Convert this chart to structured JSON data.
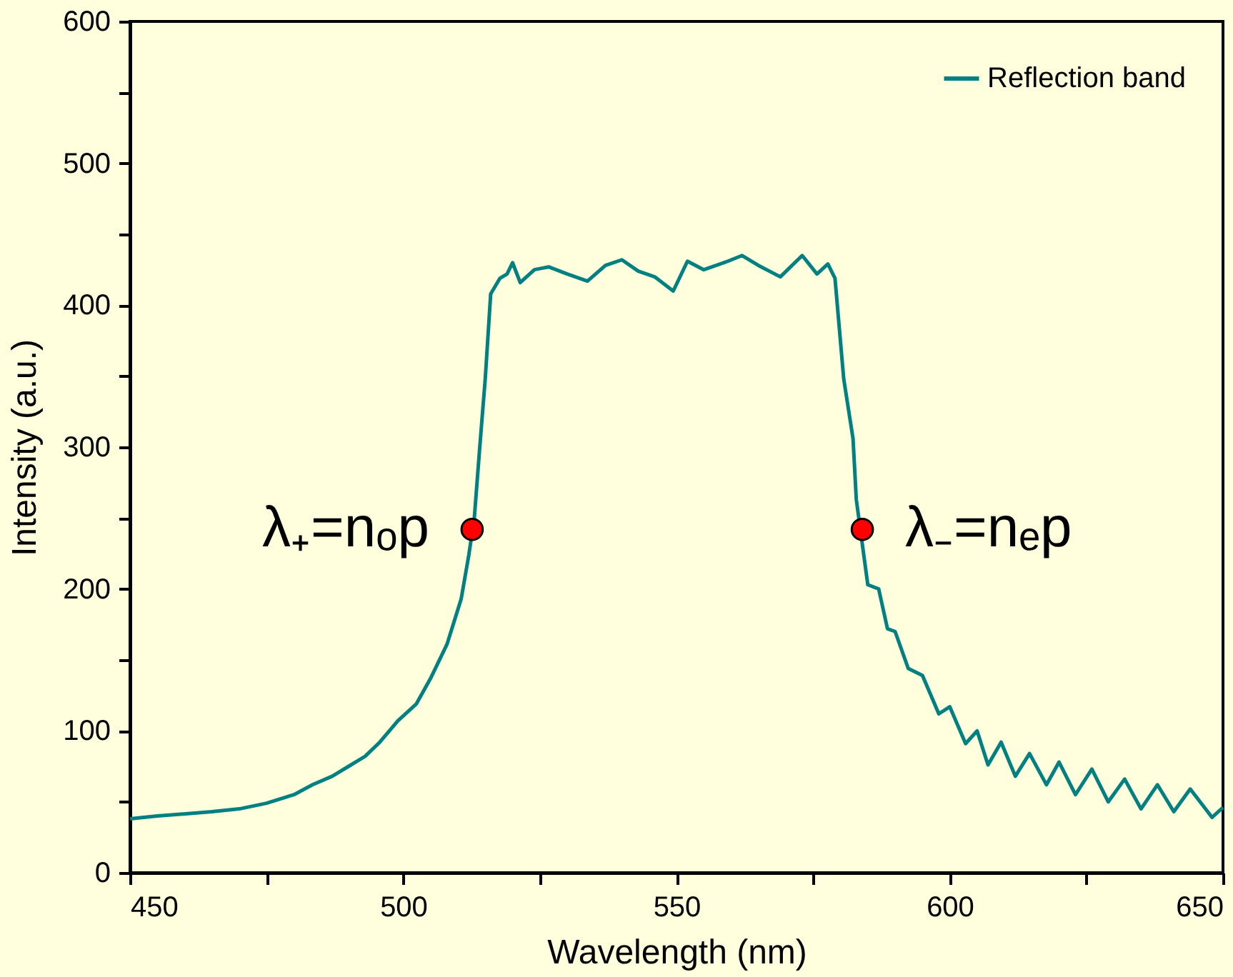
{
  "chart_data": {
    "type": "line",
    "xlabel": "Wavelength (nm)",
    "ylabel": "Intensity (a.u.)",
    "xlim": [
      450,
      650
    ],
    "ylim": [
      0,
      600
    ],
    "xticks": [
      450,
      {
        "value": 475,
        "label": null
      },
      500,
      {
        "value": 525,
        "label": null
      },
      550,
      {
        "value": 575,
        "label": null
      },
      600,
      {
        "value": 625,
        "label": null
      },
      650
    ],
    "yticks": [
      0,
      {
        "value": 50,
        "label": null
      },
      100,
      {
        "value": 150,
        "label": null
      },
      200,
      {
        "value": 250,
        "label": null
      },
      300,
      {
        "value": 350,
        "label": null
      },
      400,
      {
        "value": 450,
        "label": null
      },
      500,
      {
        "value": 550,
        "label": null
      },
      600
    ],
    "grid": false,
    "legend": "top right",
    "line_style": "solid",
    "series": [
      {
        "name": "Reflection band",
        "color": "#008080",
        "marker": "none",
        "x": [
          450,
          455,
          465,
          470,
          475,
          480,
          483.4,
          487,
          490,
          493,
          495.7,
          499,
          502.4,
          505,
          508,
          510.6,
          512,
          513,
          514,
          515,
          516,
          517.7,
          519,
          520,
          521.4,
          524,
          526.6,
          530,
          533.7,
          537,
          540,
          543,
          546,
          549.4,
          552,
          555,
          559.4,
          562,
          565,
          569,
          573,
          575.7,
          577.7,
          579,
          580.6,
          582.3,
          582.9,
          585,
          587,
          588.6,
          590,
          592.4,
          595,
          598,
          600,
          602.9,
          605,
          607,
          609.4,
          612,
          614.6,
          617.7,
          620,
          623,
          626,
          629,
          632,
          635,
          638,
          641,
          644,
          648,
          650
        ],
        "values": [
          38,
          40,
          43,
          45,
          49,
          55,
          62,
          68,
          75,
          82,
          92,
          107,
          119,
          137,
          161,
          193,
          224,
          250,
          300,
          348,
          408,
          419,
          422,
          430,
          416,
          425,
          427,
          422,
          417,
          428,
          432,
          424,
          420,
          410,
          431,
          425,
          431,
          435,
          428,
          420,
          435,
          422,
          429,
          419,
          348,
          306,
          263,
          203,
          200,
          172,
          170,
          144,
          139,
          112,
          117,
          91,
          100,
          76,
          92,
          68,
          84,
          62,
          78,
          55,
          73,
          50,
          66,
          45,
          62,
          43,
          59,
          39,
          46
        ]
      },
      {
        "type": "scatter",
        "color": "#ff0000",
        "marker": "circle",
        "x": [
          512.6,
          584
        ],
        "values": [
          242,
          242
        ]
      }
    ],
    "annotations": [
      {
        "text": "λ₊=nₒp",
        "x": 512.6,
        "y": 242
      },
      {
        "text": "λ₋=nₑp",
        "x": 584,
        "y": 242
      }
    ]
  }
}
